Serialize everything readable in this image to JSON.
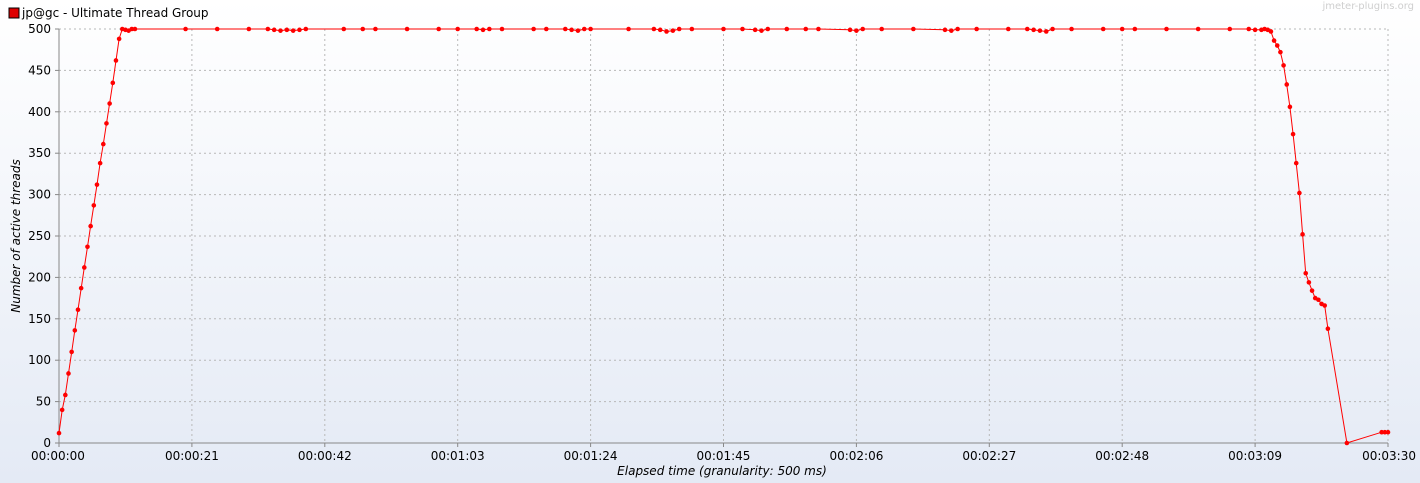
{
  "watermark": "jmeter-plugins.org",
  "chart_data": {
    "type": "line",
    "title": "",
    "xlabel": "Elapsed time (granularity: 500 ms)",
    "ylabel": "Number of active threads",
    "xlim": [
      0,
      210
    ],
    "ylim": [
      0,
      500
    ],
    "x_ticks": [
      0,
      21,
      42,
      63,
      84,
      105,
      126,
      147,
      168,
      189,
      210
    ],
    "x_tick_labels": [
      "00:00:00",
      "00:00:21",
      "00:00:42",
      "00:01:03",
      "00:01:24",
      "00:01:45",
      "00:02:06",
      "00:02:27",
      "00:02:48",
      "00:03:09",
      "00:03:30"
    ],
    "y_ticks": [
      0,
      50,
      100,
      150,
      200,
      250,
      300,
      350,
      400,
      450,
      500
    ],
    "y_tick_labels": [
      "0",
      "50",
      "100",
      "150",
      "200",
      "250",
      "300",
      "350",
      "400",
      "450",
      "500"
    ],
    "grid": true,
    "legend_position": "top-left",
    "series": [
      {
        "name": "jp@gc - Ultimate Thread Group",
        "color": "#ff0000",
        "points": [
          [
            0,
            12
          ],
          [
            0.5,
            40
          ],
          [
            1,
            58
          ],
          [
            1.5,
            84
          ],
          [
            2,
            110
          ],
          [
            2.5,
            136
          ],
          [
            3,
            161
          ],
          [
            3.5,
            187
          ],
          [
            4,
            212
          ],
          [
            4.5,
            237
          ],
          [
            5,
            262
          ],
          [
            5.5,
            287
          ],
          [
            6,
            312
          ],
          [
            6.5,
            338
          ],
          [
            7,
            361
          ],
          [
            7.5,
            386
          ],
          [
            8,
            410
          ],
          [
            8.5,
            435
          ],
          [
            9,
            462
          ],
          [
            9.5,
            488
          ],
          [
            10,
            500
          ],
          [
            10.5,
            499
          ],
          [
            11,
            498
          ],
          [
            11.5,
            500
          ],
          [
            12,
            500
          ],
          [
            20,
            500
          ],
          [
            25,
            500
          ],
          [
            30,
            500
          ],
          [
            33,
            500
          ],
          [
            34,
            499
          ],
          [
            35,
            498
          ],
          [
            36,
            499
          ],
          [
            37,
            498
          ],
          [
            38,
            499
          ],
          [
            39,
            500
          ],
          [
            45,
            500
          ],
          [
            48,
            500
          ],
          [
            50,
            500
          ],
          [
            55,
            500
          ],
          [
            60,
            500
          ],
          [
            63,
            500
          ],
          [
            66,
            500
          ],
          [
            67,
            499
          ],
          [
            68,
            500
          ],
          [
            70,
            500
          ],
          [
            75,
            500
          ],
          [
            77,
            500
          ],
          [
            80,
            500
          ],
          [
            81,
            499
          ],
          [
            82,
            498
          ],
          [
            83,
            500
          ],
          [
            84,
            500
          ],
          [
            90,
            500
          ],
          [
            94,
            500
          ],
          [
            95,
            499
          ],
          [
            96,
            497
          ],
          [
            97,
            498
          ],
          [
            98,
            500
          ],
          [
            100,
            500
          ],
          [
            105,
            500
          ],
          [
            108,
            500
          ],
          [
            110,
            499
          ],
          [
            111,
            498
          ],
          [
            112,
            500
          ],
          [
            115,
            500
          ],
          [
            118,
            500
          ],
          [
            120,
            500
          ],
          [
            125,
            499
          ],
          [
            126,
            498
          ],
          [
            127,
            500
          ],
          [
            130,
            500
          ],
          [
            135,
            500
          ],
          [
            140,
            499
          ],
          [
            141,
            498
          ],
          [
            142,
            500
          ],
          [
            145,
            500
          ],
          [
            150,
            500
          ],
          [
            153,
            500
          ],
          [
            154,
            499
          ],
          [
            155,
            498
          ],
          [
            156,
            497
          ],
          [
            157,
            500
          ],
          [
            160,
            500
          ],
          [
            165,
            500
          ],
          [
            168,
            500
          ],
          [
            170,
            500
          ],
          [
            175,
            500
          ],
          [
            180,
            500
          ],
          [
            185,
            500
          ],
          [
            188,
            500
          ],
          [
            189,
            499
          ],
          [
            190,
            499
          ],
          [
            190.5,
            500
          ],
          [
            191,
            499
          ],
          [
            191.5,
            497
          ],
          [
            192,
            486
          ],
          [
            192.5,
            480
          ],
          [
            193,
            472
          ],
          [
            193.5,
            456
          ],
          [
            194,
            433
          ],
          [
            194.5,
            406
          ],
          [
            195,
            373
          ],
          [
            195.5,
            338
          ],
          [
            196,
            302
          ],
          [
            196.5,
            252
          ],
          [
            197,
            205
          ],
          [
            197.5,
            194
          ],
          [
            198,
            184
          ],
          [
            198.5,
            175
          ],
          [
            199,
            173
          ],
          [
            199.5,
            168
          ],
          [
            200,
            166
          ],
          [
            200.5,
            138
          ],
          [
            203.5,
            0
          ],
          [
            209,
            13
          ],
          [
            209.5,
            13
          ],
          [
            210,
            13
          ]
        ]
      }
    ]
  }
}
